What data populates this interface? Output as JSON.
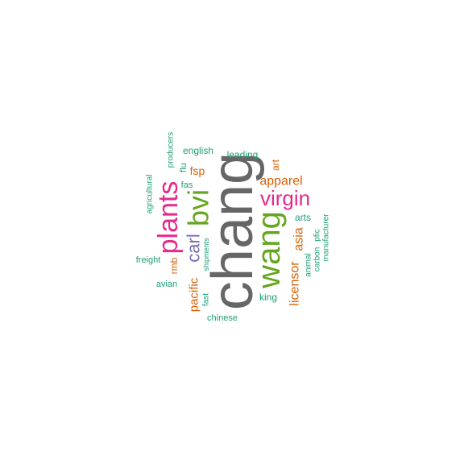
{
  "colors": {
    "gray": "#666666",
    "green": "#66a61e",
    "magenta": "#e7298a",
    "orange": "#d95f02",
    "purple": "#7570b3",
    "teal": "#1b9e77"
  },
  "words": [
    {
      "text": "chang",
      "color": "gray"
    },
    {
      "text": "wang",
      "color": "green"
    },
    {
      "text": "bvi",
      "color": "green"
    },
    {
      "text": "plants",
      "color": "magenta"
    },
    {
      "text": "virgin",
      "color": "magenta"
    },
    {
      "text": "carl",
      "color": "purple"
    },
    {
      "text": "apparel",
      "color": "orange"
    },
    {
      "text": "licensor",
      "color": "orange"
    },
    {
      "text": "asia",
      "color": "orange"
    },
    {
      "text": "pacific",
      "color": "orange"
    },
    {
      "text": "fsp",
      "color": "orange"
    },
    {
      "text": "rmb",
      "color": "orange"
    },
    {
      "text": "art",
      "color": "orange"
    },
    {
      "text": "english",
      "color": "teal"
    },
    {
      "text": "leading",
      "color": "teal"
    },
    {
      "text": "arts",
      "color": "teal"
    },
    {
      "text": "king",
      "color": "teal"
    },
    {
      "text": "chinese",
      "color": "teal"
    },
    {
      "text": "freight",
      "color": "teal"
    },
    {
      "text": "avian",
      "color": "teal"
    },
    {
      "text": "fas",
      "color": "teal"
    },
    {
      "text": "flu",
      "color": "teal"
    },
    {
      "text": "producers",
      "color": "teal"
    },
    {
      "text": "agricultural",
      "color": "teal"
    },
    {
      "text": "shipments",
      "color": "teal"
    },
    {
      "text": "fast",
      "color": "teal"
    },
    {
      "text": "animal",
      "color": "teal"
    },
    {
      "text": "carbon",
      "color": "teal"
    },
    {
      "text": "pfic",
      "color": "teal"
    },
    {
      "text": "manufacturer",
      "color": "teal"
    }
  ]
}
